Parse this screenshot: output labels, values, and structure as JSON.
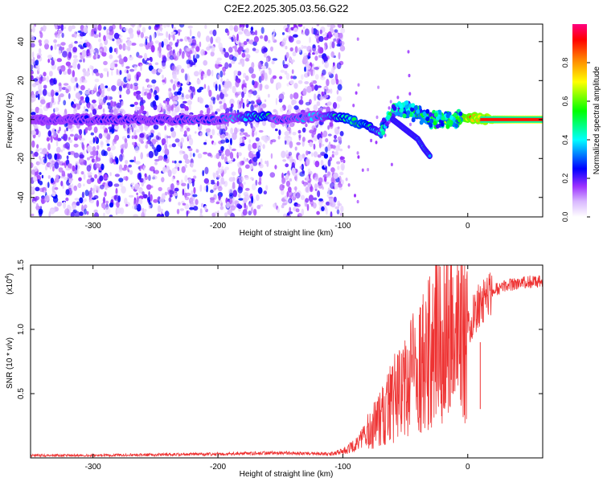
{
  "chart_data": [
    {
      "type": "heatmap",
      "title": "C2E2.2025.305.03.56.G22",
      "xlabel": "Height of straight line (km)",
      "ylabel": "Frequency (Hz)",
      "xlim": [
        -350,
        60
      ],
      "ylim": [
        -50,
        49
      ],
      "x_ticks": [
        -300,
        -200,
        -100,
        0
      ],
      "x_tick_labels": [
        "-300",
        "-200",
        "-100",
        "0"
      ],
      "y_ticks": [
        -40,
        -20,
        0,
        20,
        40
      ],
      "y_tick_labels": [
        "-40",
        "-20",
        "0",
        "20",
        "40"
      ],
      "noise_region_x": [
        -350,
        -100
      ],
      "ridge_x": [
        -350,
        -300,
        -250,
        -200,
        -180,
        -160,
        -150,
        -130,
        -110,
        -100,
        -90,
        -80,
        -70,
        -60,
        -50,
        -40,
        -30,
        -20,
        -10,
        0,
        20,
        40,
        60
      ],
      "ridge_freq": [
        0,
        0,
        0,
        0,
        1,
        2,
        0,
        1,
        2,
        1,
        -1,
        -3,
        -6,
        4,
        5,
        3,
        0,
        0,
        0,
        1,
        0,
        0,
        0
      ],
      "ridge_amplitude": [
        0.2,
        0.25,
        0.25,
        0.3,
        0.45,
        0.5,
        0.3,
        0.35,
        0.45,
        0.5,
        0.55,
        0.5,
        0.45,
        0.35,
        0.5,
        0.55,
        0.6,
        0.7,
        0.8,
        0.85,
        0.9,
        0.95,
        0.95
      ],
      "branch_x": [
        -60,
        -50,
        -40,
        -35,
        -30
      ],
      "branch_freq": [
        0,
        -5,
        -10,
        -15,
        -19
      ],
      "colorbar": {
        "label": "Normalized spectral amplitude",
        "range": [
          0,
          1
        ],
        "ticks": [
          0.0,
          0.2,
          0.4,
          0.6,
          0.8
        ],
        "tick_labels": [
          "0.0",
          "0.2",
          "0.4",
          "0.6",
          "0.8"
        ],
        "colors": [
          "#ffffff",
          "#9b30ff",
          "#0000ff",
          "#00ffff",
          "#00ff00",
          "#ffff00",
          "#ff8000",
          "#ff0000",
          "#ff0080"
        ]
      }
    },
    {
      "type": "line",
      "xlabel": "Height of straight line (km)",
      "ylabel": "SNR (10 * v/v)",
      "scale_label": "(x10",
      "scale_exp": "4",
      "scale_close": ")",
      "xlim": [
        -350,
        60
      ],
      "ylim": [
        0,
        1.5
      ],
      "x_ticks": [
        -300,
        -200,
        -100,
        0
      ],
      "x_tick_labels": [
        "-300",
        "-200",
        "-100",
        "0"
      ],
      "y_ticks": [
        0.5,
        1.0,
        1.5
      ],
      "y_tick_labels": [
        "0.5",
        "1.0",
        "1.5"
      ],
      "series": [
        {
          "name": "SNR",
          "color": "#ee3333",
          "x": [
            -350,
            -300,
            -250,
            -200,
            -150,
            -110,
            -100,
            -90,
            -80,
            -70,
            -60,
            -50,
            -40,
            -30,
            -25,
            -20,
            -15,
            -10,
            -5,
            0,
            5,
            10,
            20,
            30,
            40,
            50,
            60
          ],
          "y": [
            0.02,
            0.02,
            0.025,
            0.03,
            0.04,
            0.03,
            0.05,
            0.1,
            0.2,
            0.3,
            0.45,
            0.55,
            0.7,
            0.85,
            0.9,
            1.05,
            1.0,
            0.95,
            1.0,
            1.05,
            1.1,
            1.2,
            1.3,
            1.34,
            1.36,
            1.37,
            1.37
          ]
        }
      ],
      "spikes": [
        {
          "x": -16,
          "y": 1.5
        },
        {
          "x": -26,
          "y": 1.15
        },
        {
          "x": 10,
          "y": 0.38
        }
      ]
    }
  ]
}
